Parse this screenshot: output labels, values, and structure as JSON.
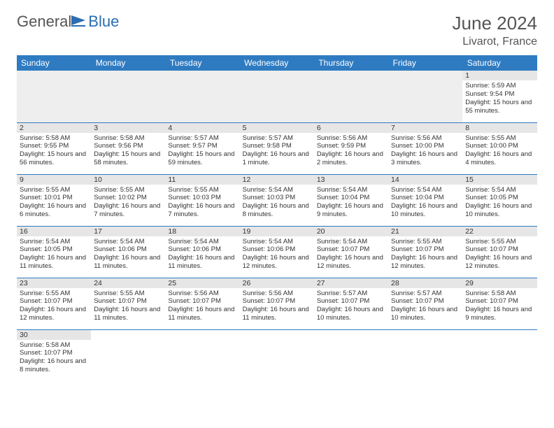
{
  "logo": {
    "text1": "General",
    "text2": "Blue"
  },
  "title": "June 2024",
  "location": "Livarot, France",
  "colors": {
    "header_bg": "#2f7bc1",
    "header_text": "#ffffff",
    "daynum_bg": "#e6e6e6",
    "empty_bg": "#eeeeee",
    "border": "#2f7bc1",
    "logo_blue": "#2a6db3",
    "text": "#333333"
  },
  "weekdays": [
    "Sunday",
    "Monday",
    "Tuesday",
    "Wednesday",
    "Thursday",
    "Friday",
    "Saturday"
  ],
  "weeks": [
    [
      null,
      null,
      null,
      null,
      null,
      null,
      {
        "d": "1",
        "sr": "Sunrise: 5:59 AM",
        "ss": "Sunset: 9:54 PM",
        "dl": "Daylight: 15 hours and 55 minutes."
      }
    ],
    [
      {
        "d": "2",
        "sr": "Sunrise: 5:58 AM",
        "ss": "Sunset: 9:55 PM",
        "dl": "Daylight: 15 hours and 56 minutes."
      },
      {
        "d": "3",
        "sr": "Sunrise: 5:58 AM",
        "ss": "Sunset: 9:56 PM",
        "dl": "Daylight: 15 hours and 58 minutes."
      },
      {
        "d": "4",
        "sr": "Sunrise: 5:57 AM",
        "ss": "Sunset: 9:57 PM",
        "dl": "Daylight: 15 hours and 59 minutes."
      },
      {
        "d": "5",
        "sr": "Sunrise: 5:57 AM",
        "ss": "Sunset: 9:58 PM",
        "dl": "Daylight: 16 hours and 1 minute."
      },
      {
        "d": "6",
        "sr": "Sunrise: 5:56 AM",
        "ss": "Sunset: 9:59 PM",
        "dl": "Daylight: 16 hours and 2 minutes."
      },
      {
        "d": "7",
        "sr": "Sunrise: 5:56 AM",
        "ss": "Sunset: 10:00 PM",
        "dl": "Daylight: 16 hours and 3 minutes."
      },
      {
        "d": "8",
        "sr": "Sunrise: 5:55 AM",
        "ss": "Sunset: 10:00 PM",
        "dl": "Daylight: 16 hours and 4 minutes."
      }
    ],
    [
      {
        "d": "9",
        "sr": "Sunrise: 5:55 AM",
        "ss": "Sunset: 10:01 PM",
        "dl": "Daylight: 16 hours and 6 minutes."
      },
      {
        "d": "10",
        "sr": "Sunrise: 5:55 AM",
        "ss": "Sunset: 10:02 PM",
        "dl": "Daylight: 16 hours and 7 minutes."
      },
      {
        "d": "11",
        "sr": "Sunrise: 5:55 AM",
        "ss": "Sunset: 10:03 PM",
        "dl": "Daylight: 16 hours and 7 minutes."
      },
      {
        "d": "12",
        "sr": "Sunrise: 5:54 AM",
        "ss": "Sunset: 10:03 PM",
        "dl": "Daylight: 16 hours and 8 minutes."
      },
      {
        "d": "13",
        "sr": "Sunrise: 5:54 AM",
        "ss": "Sunset: 10:04 PM",
        "dl": "Daylight: 16 hours and 9 minutes."
      },
      {
        "d": "14",
        "sr": "Sunrise: 5:54 AM",
        "ss": "Sunset: 10:04 PM",
        "dl": "Daylight: 16 hours and 10 minutes."
      },
      {
        "d": "15",
        "sr": "Sunrise: 5:54 AM",
        "ss": "Sunset: 10:05 PM",
        "dl": "Daylight: 16 hours and 10 minutes."
      }
    ],
    [
      {
        "d": "16",
        "sr": "Sunrise: 5:54 AM",
        "ss": "Sunset: 10:05 PM",
        "dl": "Daylight: 16 hours and 11 minutes."
      },
      {
        "d": "17",
        "sr": "Sunrise: 5:54 AM",
        "ss": "Sunset: 10:06 PM",
        "dl": "Daylight: 16 hours and 11 minutes."
      },
      {
        "d": "18",
        "sr": "Sunrise: 5:54 AM",
        "ss": "Sunset: 10:06 PM",
        "dl": "Daylight: 16 hours and 11 minutes."
      },
      {
        "d": "19",
        "sr": "Sunrise: 5:54 AM",
        "ss": "Sunset: 10:06 PM",
        "dl": "Daylight: 16 hours and 12 minutes."
      },
      {
        "d": "20",
        "sr": "Sunrise: 5:54 AM",
        "ss": "Sunset: 10:07 PM",
        "dl": "Daylight: 16 hours and 12 minutes."
      },
      {
        "d": "21",
        "sr": "Sunrise: 5:55 AM",
        "ss": "Sunset: 10:07 PM",
        "dl": "Daylight: 16 hours and 12 minutes."
      },
      {
        "d": "22",
        "sr": "Sunrise: 5:55 AM",
        "ss": "Sunset: 10:07 PM",
        "dl": "Daylight: 16 hours and 12 minutes."
      }
    ],
    [
      {
        "d": "23",
        "sr": "Sunrise: 5:55 AM",
        "ss": "Sunset: 10:07 PM",
        "dl": "Daylight: 16 hours and 12 minutes."
      },
      {
        "d": "24",
        "sr": "Sunrise: 5:55 AM",
        "ss": "Sunset: 10:07 PM",
        "dl": "Daylight: 16 hours and 11 minutes."
      },
      {
        "d": "25",
        "sr": "Sunrise: 5:56 AM",
        "ss": "Sunset: 10:07 PM",
        "dl": "Daylight: 16 hours and 11 minutes."
      },
      {
        "d": "26",
        "sr": "Sunrise: 5:56 AM",
        "ss": "Sunset: 10:07 PM",
        "dl": "Daylight: 16 hours and 11 minutes."
      },
      {
        "d": "27",
        "sr": "Sunrise: 5:57 AM",
        "ss": "Sunset: 10:07 PM",
        "dl": "Daylight: 16 hours and 10 minutes."
      },
      {
        "d": "28",
        "sr": "Sunrise: 5:57 AM",
        "ss": "Sunset: 10:07 PM",
        "dl": "Daylight: 16 hours and 10 minutes."
      },
      {
        "d": "29",
        "sr": "Sunrise: 5:58 AM",
        "ss": "Sunset: 10:07 PM",
        "dl": "Daylight: 16 hours and 9 minutes."
      }
    ],
    [
      {
        "d": "30",
        "sr": "Sunrise: 5:58 AM",
        "ss": "Sunset: 10:07 PM",
        "dl": "Daylight: 16 hours and 8 minutes."
      },
      null,
      null,
      null,
      null,
      null,
      null
    ]
  ]
}
